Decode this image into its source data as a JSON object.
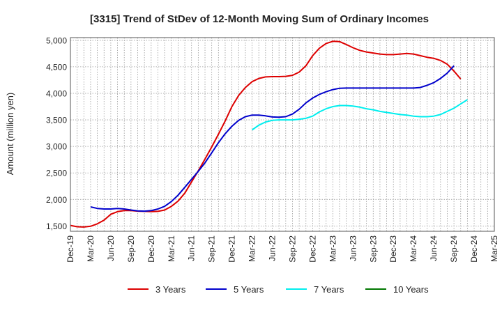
{
  "chart_data": {
    "type": "line",
    "title": "[3315]  Trend of StDev of 12-Month Moving Sum of Ordinary Incomes",
    "xlabel": "",
    "ylabel": "Amount (million yen)",
    "ylim": [
      1400,
      5050
    ],
    "yticks": [
      1500,
      2000,
      2500,
      3000,
      3500,
      4000,
      4500,
      5000
    ],
    "ytick_labels": [
      "1,500",
      "2,000",
      "2,500",
      "3,000",
      "3,500",
      "4,000",
      "4,500",
      "5,000"
    ],
    "x_count": 64,
    "xtick_labels": [
      "Dec-19",
      "Mar-20",
      "Jun-20",
      "Sep-20",
      "Dec-20",
      "Mar-21",
      "Jun-21",
      "Sep-21",
      "Dec-21",
      "Mar-22",
      "Jun-22",
      "Sep-22",
      "Dec-22",
      "Mar-23",
      "Jun-23",
      "Sep-23",
      "Dec-23",
      "Mar-24",
      "Jun-24",
      "Sep-24",
      "Dec-24",
      "Mar-25"
    ],
    "grid": true,
    "legend_position": "bottom",
    "series": [
      {
        "name": "3 Years",
        "color": "#dd0000",
        "start_index": 0,
        "values": [
          1510,
          1485,
          1480,
          1495,
          1540,
          1610,
          1720,
          1770,
          1790,
          1790,
          1780,
          1775,
          1770,
          1775,
          1800,
          1870,
          1970,
          2120,
          2330,
          2540,
          2760,
          2990,
          3230,
          3480,
          3750,
          3960,
          4110,
          4220,
          4280,
          4310,
          4315,
          4315,
          4320,
          4340,
          4400,
          4520,
          4710,
          4850,
          4940,
          4980,
          4975,
          4920,
          4860,
          4810,
          4780,
          4760,
          4740,
          4730,
          4730,
          4740,
          4750,
          4740,
          4710,
          4680,
          4660,
          4620,
          4550,
          4420,
          4270
        ]
      },
      {
        "name": "5 Years",
        "color": "#0000cc",
        "start_index": 3,
        "values": [
          1860,
          1830,
          1820,
          1820,
          1830,
          1820,
          1800,
          1785,
          1780,
          1790,
          1820,
          1870,
          1960,
          2080,
          2230,
          2380,
          2530,
          2690,
          2880,
          3070,
          3240,
          3380,
          3490,
          3560,
          3590,
          3590,
          3575,
          3555,
          3550,
          3560,
          3610,
          3700,
          3820,
          3910,
          3980,
          4030,
          4070,
          4095,
          4100,
          4100,
          4100,
          4100,
          4100,
          4100,
          4100,
          4100,
          4100,
          4100,
          4100,
          4110,
          4150,
          4200,
          4280,
          4380,
          4520
        ]
      },
      {
        "name": "7 Years",
        "color": "#00eeee",
        "start_index": 27,
        "values": [
          3310,
          3400,
          3460,
          3490,
          3500,
          3500,
          3500,
          3510,
          3530,
          3570,
          3650,
          3710,
          3750,
          3770,
          3770,
          3760,
          3740,
          3710,
          3690,
          3660,
          3640,
          3620,
          3600,
          3590,
          3570,
          3560,
          3560,
          3570,
          3600,
          3660,
          3720,
          3800,
          3880
        ]
      },
      {
        "name": "10 Years",
        "color": "#007700",
        "start_index": 0,
        "values": []
      }
    ]
  }
}
